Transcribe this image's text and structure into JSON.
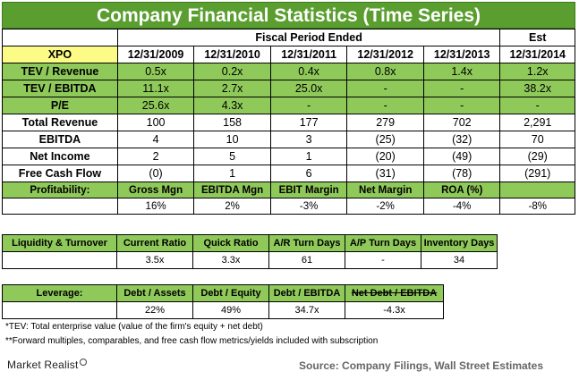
{
  "title": "Company Financial Statistics (Time Series)",
  "header": {
    "period_label": "Fiscal Period Ended",
    "est_label": "Est",
    "ticker": "XPO",
    "dates": [
      "12/31/2009",
      "12/31/2010",
      "12/31/2011",
      "12/31/2012",
      "12/31/2013",
      "12/31/2014"
    ]
  },
  "multiples": [
    {
      "label": "TEV / Revenue",
      "values": [
        "0.5x",
        "0.2x",
        "0.4x",
        "0.8x",
        "1.4x",
        "1.2x"
      ]
    },
    {
      "label": "TEV / EBITDA",
      "values": [
        "11.1x",
        "2.7x",
        "25.0x",
        "-",
        "-",
        "38.2x"
      ]
    },
    {
      "label": "P/E",
      "values": [
        "25.6x",
        "4.3x",
        "-",
        "-",
        "-",
        "-"
      ]
    }
  ],
  "financials": [
    {
      "label": "Total Revenue",
      "values": [
        "100",
        "158",
        "177",
        "279",
        "702",
        "2,291"
      ]
    },
    {
      "label": "EBITDA",
      "values": [
        "4",
        "10",
        "3",
        "(25)",
        "(32)",
        "70"
      ]
    },
    {
      "label": "Net Income",
      "values": [
        "2",
        "5",
        "1",
        "(20)",
        "(49)",
        "(29)"
      ]
    },
    {
      "label": "Free Cash Flow",
      "values": [
        "(0)",
        "1",
        "6",
        "(31)",
        "(78)",
        "(291)"
      ]
    }
  ],
  "profitability": {
    "label": "Profitability:",
    "headers": [
      "Gross Mgn",
      "EBITDA Mgn",
      "EBIT Margin",
      "Net Margin",
      "ROA (%)",
      ""
    ],
    "values": [
      "16%",
      "2%",
      "-3%",
      "-2%",
      "-4%",
      "-8%"
    ]
  },
  "liquidity": {
    "label": "Liquidity & Turnover",
    "headers": [
      "Current Ratio",
      "Quick Ratio",
      "A/R Turn Days",
      "A/P Turn Days",
      "Inventory Days"
    ],
    "values": [
      "3.5x",
      "3.3x",
      "61",
      "-",
      "34"
    ]
  },
  "leverage": {
    "label": "Leverage:",
    "headers": [
      "Debt / Assets",
      "Debt / Equity",
      "Debt / EBITDA",
      "Net Debt / EBITDA"
    ],
    "values": [
      "22%",
      "49%",
      "34.7x",
      "-4.3x"
    ]
  },
  "footnotes": [
    "*TEV: Total enterprise value (value of the firm's equity + net debt)",
    "**Forward multiples, comparables, and free cash flow metrics/yields included with subscription"
  ],
  "brand": "Market Realist",
  "source": "Source: Company Filings, Wall Street Estimates",
  "colors": {
    "title_bg": "#5a9e2f",
    "highlight": "#8fc95a",
    "ticker_bg": "#fbfb86"
  }
}
